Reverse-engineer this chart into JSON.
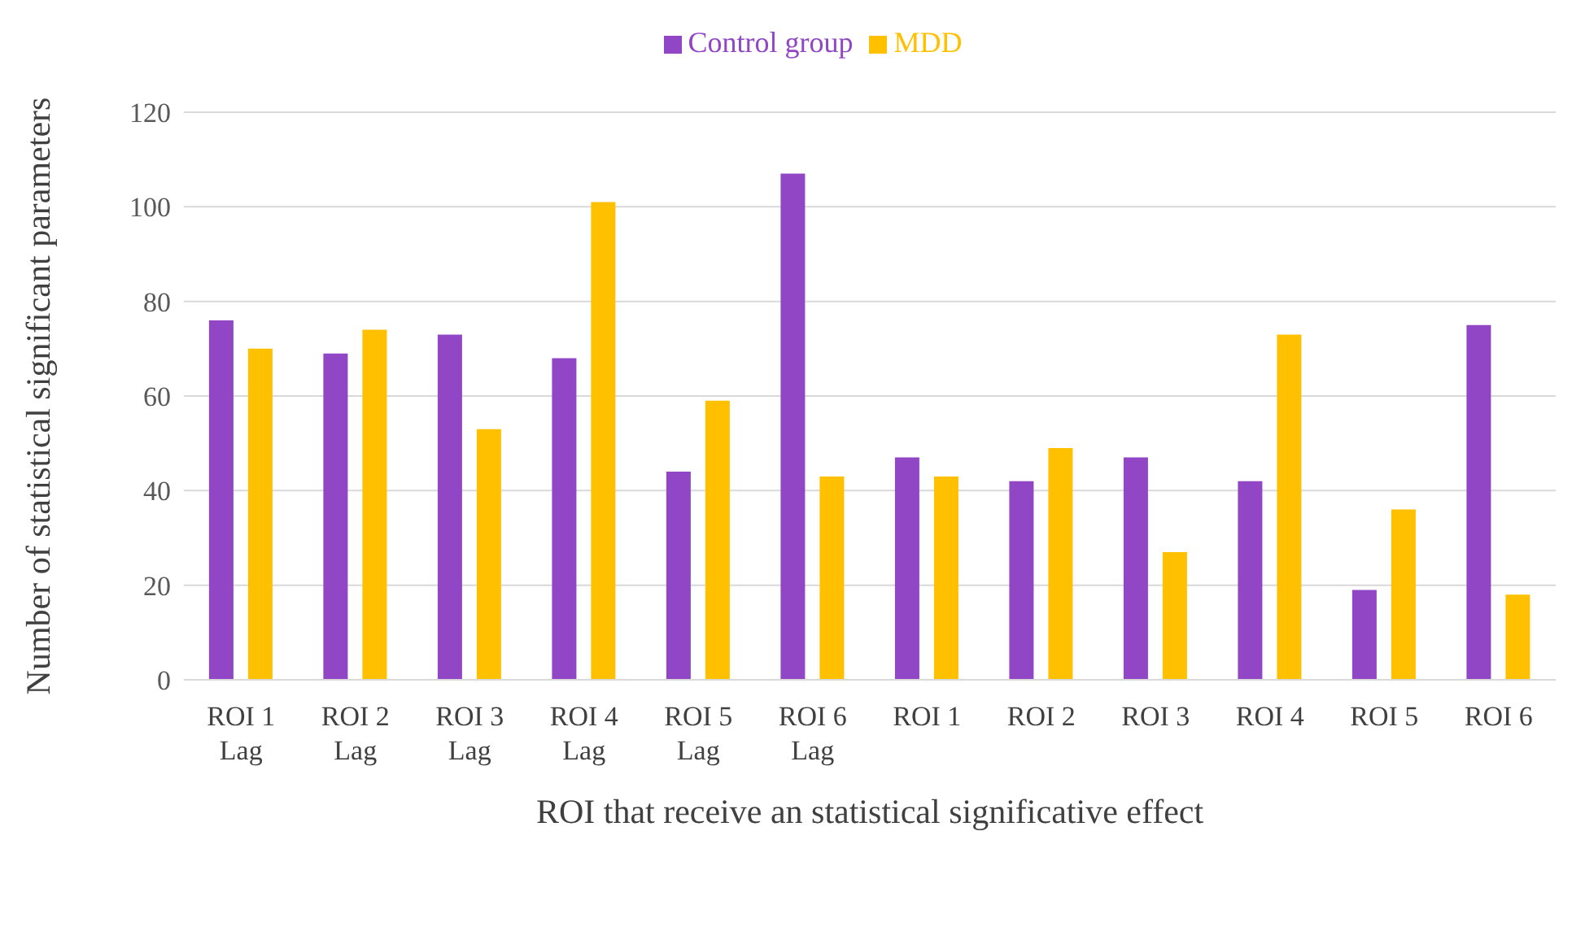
{
  "chart_data": {
    "type": "bar",
    "xlabel": "ROI that receive an statistical significative effect",
    "ylabel": "Number of statistical significant parameters",
    "categories": [
      "ROI 1\nLag",
      "ROI 2\nLag",
      "ROI 3\nLag",
      "ROI 4\nLag",
      "ROI 5\nLag",
      "ROI 6\nLag",
      "ROI 1",
      "ROI 2",
      "ROI 3",
      "ROI 4",
      "ROI 5",
      "ROI 6"
    ],
    "series": [
      {
        "name": "Control group",
        "color": "#9146c6",
        "values": [
          76,
          69,
          73,
          68,
          44,
          107,
          47,
          42,
          47,
          42,
          19,
          75
        ]
      },
      {
        "name": "MDD",
        "color": "#ffc000",
        "values": [
          70,
          74,
          53,
          101,
          59,
          43,
          43,
          49,
          27,
          73,
          36,
          18
        ]
      }
    ],
    "ylim": [
      0,
      120
    ],
    "yticks": [
      0,
      20,
      40,
      60,
      80,
      100,
      120
    ],
    "grid": "y",
    "legend": "top"
  }
}
